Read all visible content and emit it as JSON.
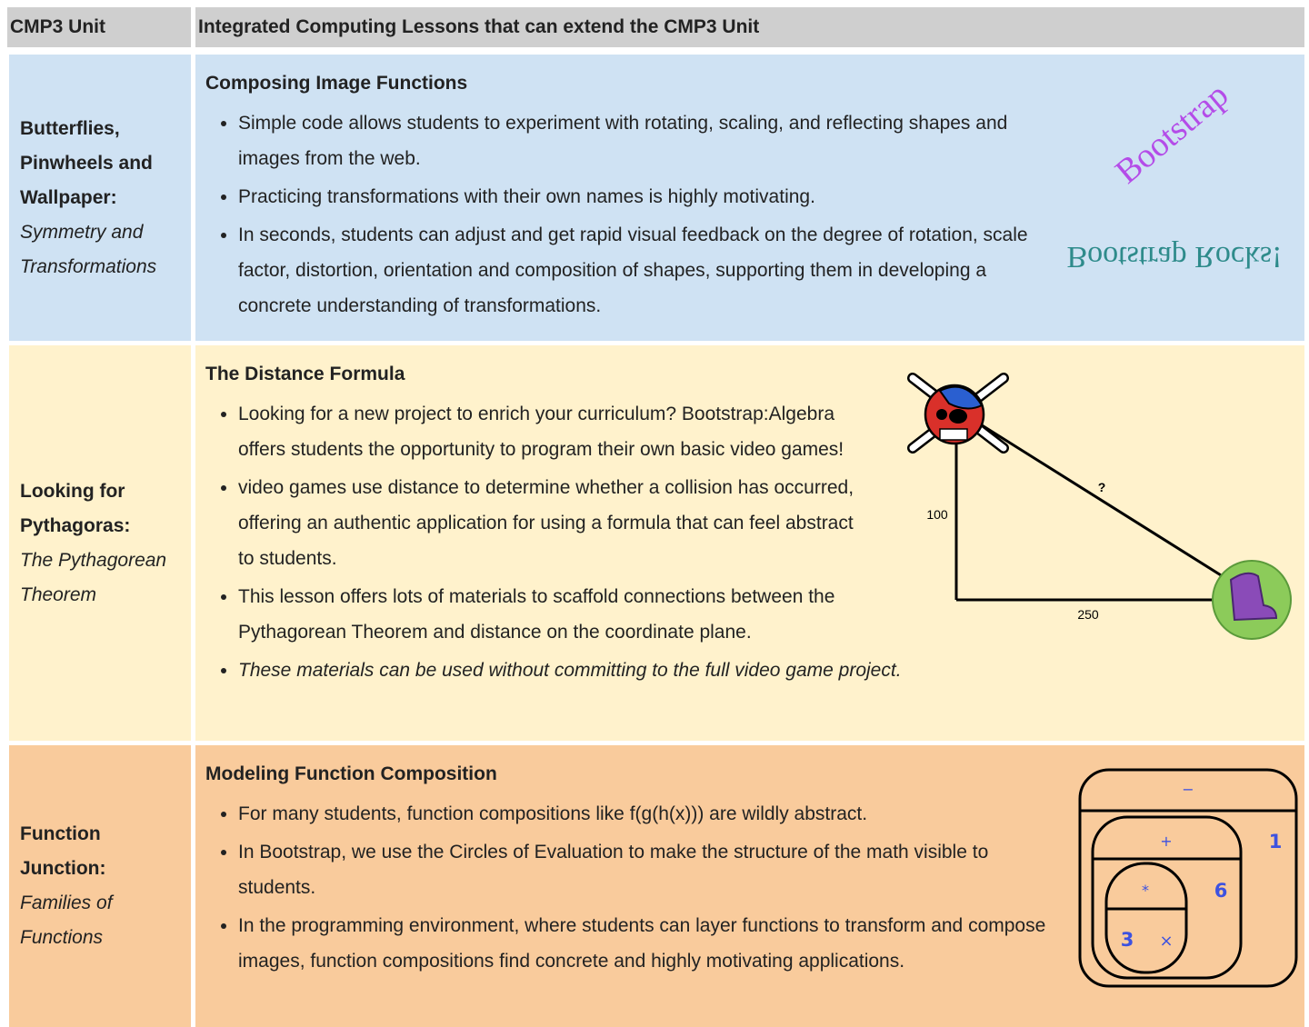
{
  "table": {
    "headers": [
      "CMP3 Unit",
      "Integrated Computing Lessons that can extend the CMP3 Unit"
    ],
    "rows": [
      {
        "unit_title": "Butterflies, Pinwheels and Wallpaper:",
        "unit_subtitle": "Symmetry and Transformations",
        "lesson_title": "Composing Image Functions",
        "bullets": [
          "Simple code allows students to experiment with rotating, scaling, and reflecting shapes and images from the web.",
          "Practicing transformations with their own names is highly motivating.",
          "In seconds, students can adjust and get rapid visual feedback on the degree of rotation, scale factor, distortion, orientation and composition of shapes, supporting them in developing a concrete understanding of transformations."
        ],
        "image": {
          "rotated_text": "Bootstrap",
          "flipped_text": "Bootstrap Rocks!"
        }
      },
      {
        "unit_title": "Looking for Pythagoras:",
        "unit_subtitle": "The Pythagorean Theorem",
        "lesson_title": "The Distance Formula",
        "bullets": [
          "Looking for a new project to enrich your curriculum? Bootstrap:Algebra offers students the opportunity to program their own basic video games!",
          "video games use distance to determine whether a collision has occurred, offering an authentic application for using a formula that can feel abstract to students.",
          "This lesson offers lots of materials to scaffold connections between the Pythagorean Theorem and distance on the coordinate plane.",
          "These materials can be used without committing to the full video game project."
        ],
        "image": {
          "hypotenuse_label": "?",
          "vertical_label": 100,
          "horizontal_label": 250
        }
      },
      {
        "unit_title": "Function Junction:",
        "unit_subtitle": "Families of Functions",
        "lesson_title": "Modeling Function Composition",
        "bullets": [
          "For many students, function compositions like f(g(h(x))) are wildly abstract.",
          "In Bootstrap, we use the Circles of Evaluation to make the structure of the math visible to students.",
          "In the programming environment, where students can layer functions to transform and compose images, function compositions find concrete and highly motivating applications."
        ],
        "image": {
          "outer_operator": "−",
          "middle_operator": "+",
          "inner_operator": "*",
          "inner_right": "×",
          "outer_number": 1,
          "middle_number": 6,
          "inner_number": 3
        }
      }
    ]
  }
}
